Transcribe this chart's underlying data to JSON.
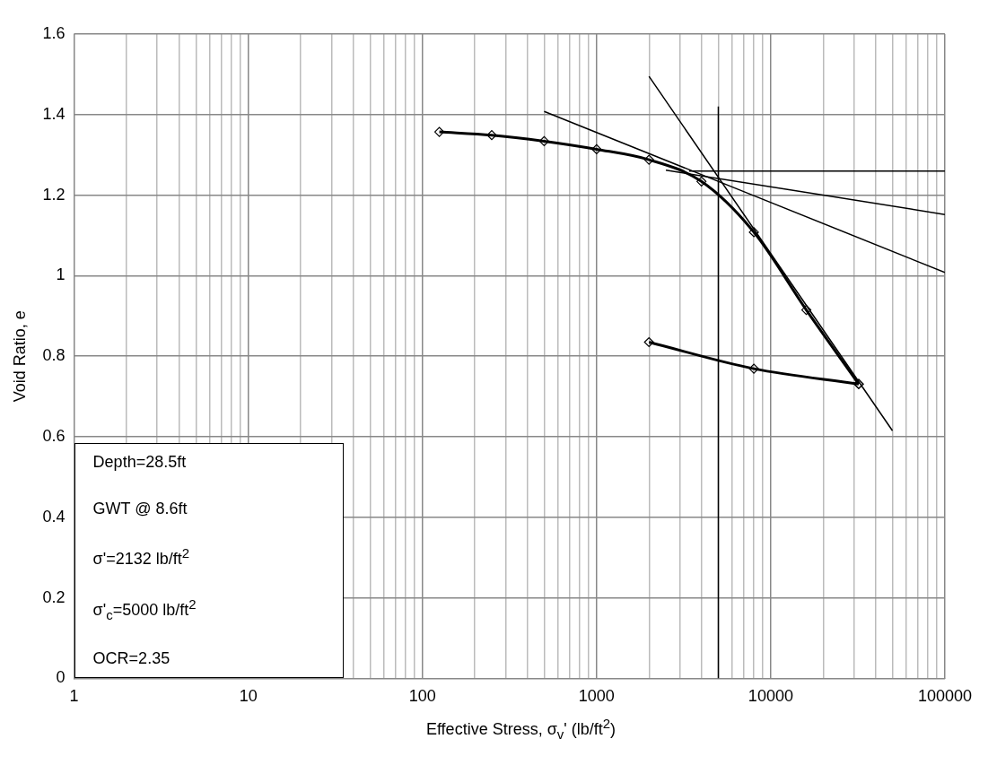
{
  "chart_data": {
    "type": "line",
    "xlabel": "Effective Stress, σ$_{v}$'  (lb/ft$^{2}$)",
    "ylabel": "Void Ratio, e",
    "log": "x",
    "xlim": [
      1,
      100000
    ],
    "xticks": [
      1,
      {
        "value": 2,
        "label": null
      },
      {
        "value": 3,
        "label": null
      },
      {
        "value": 4,
        "label": null
      },
      {
        "value": 5,
        "label": null
      },
      {
        "value": 6,
        "label": null
      },
      {
        "value": 7,
        "label": null
      },
      {
        "value": 8,
        "label": null
      },
      {
        "value": 9,
        "label": null
      },
      10,
      {
        "value": 20,
        "label": null
      },
      {
        "value": 30,
        "label": null
      },
      {
        "value": 40,
        "label": null
      },
      {
        "value": 50,
        "label": null
      },
      {
        "value": 60,
        "label": null
      },
      {
        "value": 70,
        "label": null
      },
      {
        "value": 80,
        "label": null
      },
      {
        "value": 90,
        "label": null
      },
      100,
      {
        "value": 200,
        "label": null
      },
      {
        "value": 300,
        "label": null
      },
      {
        "value": 400,
        "label": null
      },
      {
        "value": 500,
        "label": null
      },
      {
        "value": 600,
        "label": null
      },
      {
        "value": 700,
        "label": null
      },
      {
        "value": 800,
        "label": null
      },
      {
        "value": 900,
        "label": null
      },
      1000,
      {
        "value": 2000,
        "label": null
      },
      {
        "value": 3000,
        "label": null
      },
      {
        "value": 4000,
        "label": null
      },
      {
        "value": 5000,
        "label": null
      },
      {
        "value": 6000,
        "label": null
      },
      {
        "value": 7000,
        "label": null
      },
      {
        "value": 8000,
        "label": null
      },
      {
        "value": 9000,
        "label": null
      },
      10000,
      {
        "value": 20000,
        "label": null
      },
      {
        "value": 30000,
        "label": null
      },
      {
        "value": 40000,
        "label": null
      },
      {
        "value": 50000,
        "label": null
      },
      {
        "value": 60000,
        "label": null
      },
      {
        "value": 70000,
        "label": null
      },
      {
        "value": 80000,
        "label": null
      },
      {
        "value": 90000,
        "label": null
      },
      100000
    ],
    "ylim": [
      0,
      1.6
    ],
    "yticks": [
      0,
      0.2,
      0.4,
      0.6,
      0.8,
      1,
      1.2,
      1.4,
      1.6
    ],
    "grid": true,
    "legend": false,
    "series": [
      {
        "color": "#000000",
        "marker": "diamond",
        "x": [
          125,
          250,
          500,
          1000,
          2000,
          4000,
          8000,
          16000,
          32000
        ],
        "values": [
          1.357,
          1.349,
          1.334,
          1.314,
          1.288,
          1.234,
          1.108,
          0.915,
          0.731
        ]
      },
      {
        "color": "#000000",
        "marker": "diamond",
        "x": [
          2000,
          8000,
          32000
        ],
        "values": [
          0.835,
          0.769,
          0.731
        ]
      },
      {
        "color": "#000000",
        "marker": "none",
        "x": [
          500,
          100000
        ],
        "values": [
          1.408,
          1.008
        ]
      },
      {
        "color": "#000000",
        "marker": "none",
        "x": [
          2500,
          100000
        ],
        "values": [
          1.262,
          1.152
        ]
      },
      {
        "color": "#000000",
        "marker": "none",
        "x": [
          2000,
          50000
        ],
        "values": [
          1.495,
          0.615
        ]
      },
      {
        "color": "#000000",
        "marker": "none",
        "x": [
          3400,
          100000
        ],
        "values": [
          1.26,
          1.26
        ]
      },
      {
        "color": "#000000",
        "marker": "none",
        "x": [
          5000,
          5000
        ],
        "values": [
          0,
          1.42
        ]
      }
    ],
    "annotations": [
      "Depth=28.5ft",
      "GWT @ 8.6ft",
      "σ'=2132 lb/ft$^{2}$",
      "σ'$_{c}$=5000 lb/ft$^{2}$",
      "OCR=2.35"
    ]
  }
}
